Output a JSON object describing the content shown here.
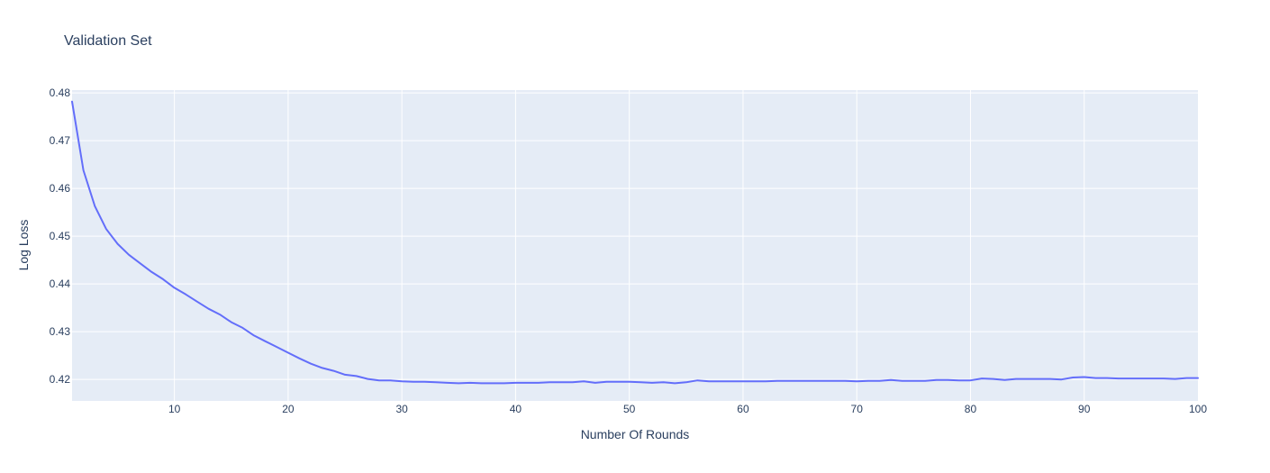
{
  "chart_data": {
    "type": "line",
    "title": "Validation Set",
    "xlabel": "Number Of Rounds",
    "ylabel": "Log Loss",
    "xlim": [
      1,
      100
    ],
    "ylim": [
      0.4155,
      0.4806
    ],
    "x_ticks": [
      10,
      20,
      30,
      40,
      50,
      60,
      70,
      80,
      90,
      100
    ],
    "y_ticks": [
      0.42,
      0.43,
      0.44,
      0.45,
      0.46,
      0.47,
      0.48
    ],
    "y_tick_labels": [
      "0.42",
      "0.43",
      "0.44",
      "0.45",
      "0.46",
      "0.47",
      "0.48"
    ],
    "grid": true,
    "colors": {
      "plot_bg": "#e5ecf6",
      "grid": "#ffffff",
      "line": "#636efa",
      "text": "#2a3f5f"
    },
    "series": [
      {
        "x": [
          1,
          2,
          3,
          4,
          5,
          6,
          7,
          8,
          9,
          10,
          11,
          12,
          13,
          14,
          15,
          16,
          17,
          18,
          19,
          20,
          21,
          22,
          23,
          24,
          25,
          26,
          27,
          28,
          29,
          30,
          31,
          32,
          33,
          34,
          35,
          36,
          37,
          38,
          39,
          40,
          41,
          42,
          43,
          44,
          45,
          46,
          47,
          48,
          49,
          50,
          51,
          52,
          53,
          54,
          55,
          56,
          57,
          58,
          59,
          60,
          61,
          62,
          63,
          64,
          65,
          66,
          67,
          68,
          69,
          70,
          71,
          72,
          73,
          74,
          75,
          76,
          77,
          78,
          79,
          80,
          81,
          82,
          83,
          84,
          85,
          86,
          87,
          88,
          89,
          90,
          91,
          92,
          93,
          94,
          95,
          96,
          97,
          98,
          99,
          100
        ],
        "values": [
          0.4782,
          0.4638,
          0.4563,
          0.4515,
          0.4484,
          0.4461,
          0.4443,
          0.4425,
          0.441,
          0.4392,
          0.4378,
          0.4363,
          0.4348,
          0.4336,
          0.432,
          0.4308,
          0.4292,
          0.428,
          0.4268,
          0.4256,
          0.4244,
          0.4233,
          0.4224,
          0.4218,
          0.421,
          0.4207,
          0.4201,
          0.4198,
          0.4198,
          0.4196,
          0.4195,
          0.4195,
          0.4194,
          0.4193,
          0.4192,
          0.4193,
          0.4192,
          0.4192,
          0.4192,
          0.4193,
          0.4193,
          0.4193,
          0.4194,
          0.4194,
          0.4194,
          0.4196,
          0.4193,
          0.4195,
          0.4195,
          0.4195,
          0.4194,
          0.4193,
          0.4194,
          0.4192,
          0.4194,
          0.4198,
          0.4196,
          0.4196,
          0.4196,
          0.4196,
          0.4196,
          0.4196,
          0.4197,
          0.4197,
          0.4197,
          0.4197,
          0.4197,
          0.4197,
          0.4197,
          0.4196,
          0.4197,
          0.4197,
          0.4199,
          0.4197,
          0.4197,
          0.4197,
          0.4199,
          0.4199,
          0.4198,
          0.4198,
          0.4202,
          0.4201,
          0.4199,
          0.4201,
          0.4201,
          0.4201,
          0.4201,
          0.42,
          0.4204,
          0.4205,
          0.4203,
          0.4203,
          0.4202,
          0.4202,
          0.4202,
          0.4202,
          0.4202,
          0.4201,
          0.4203,
          0.4203
        ]
      }
    ]
  }
}
